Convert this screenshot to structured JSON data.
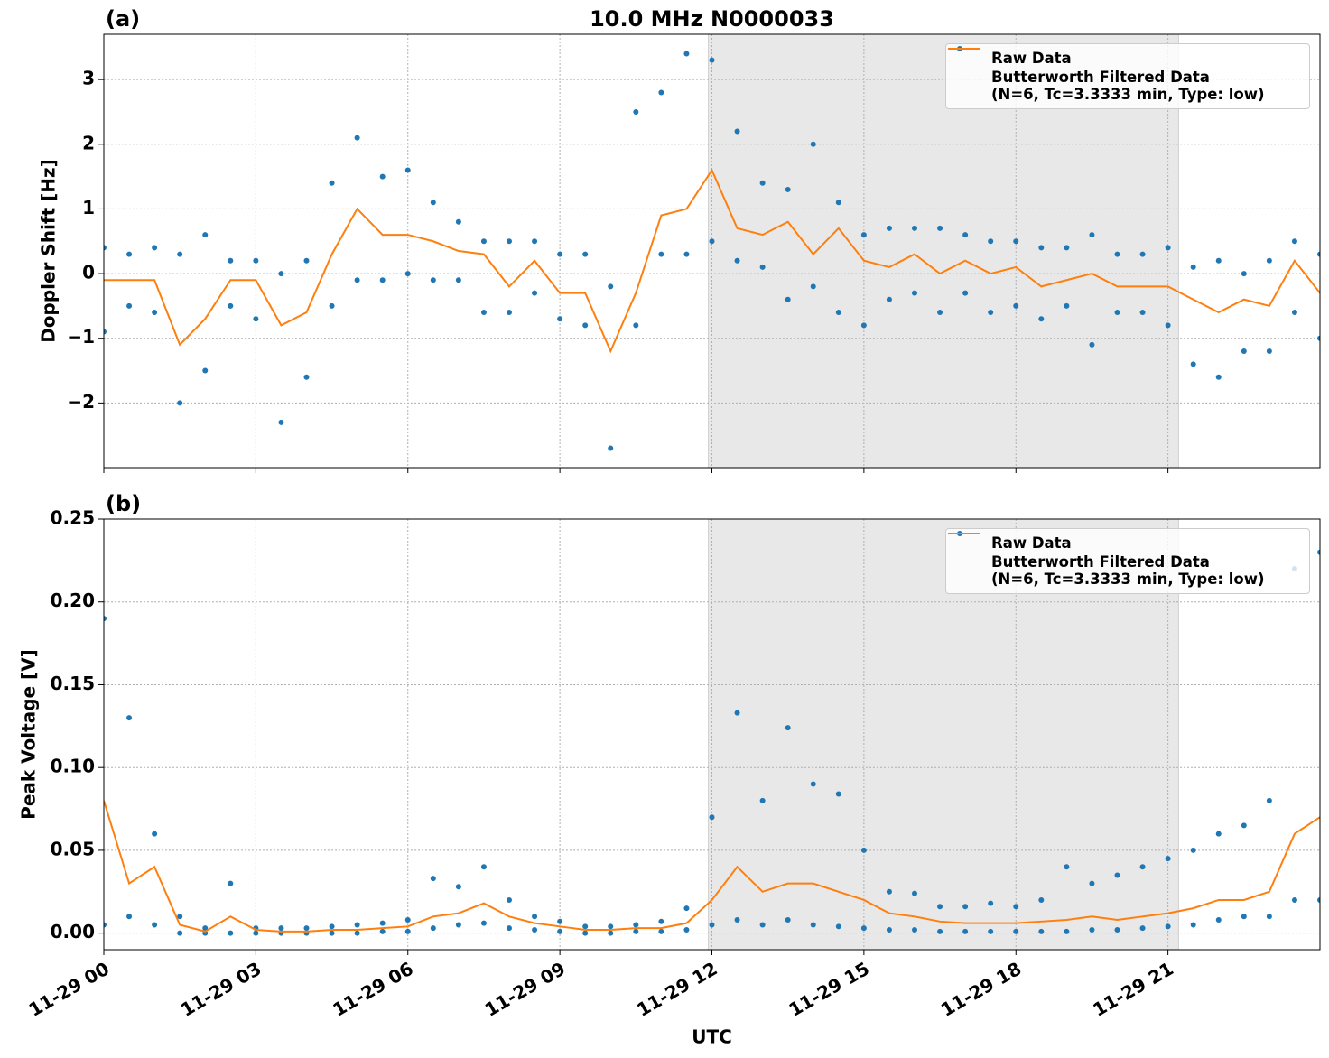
{
  "chart_data": [
    {
      "type": "scatter_line",
      "panel_label": "(a)",
      "title": "10.0 MHz N0000033",
      "ylabel": "Doppler Shift [Hz]",
      "xlim": [
        0,
        24
      ],
      "xticks": [
        0,
        3,
        6,
        9,
        12,
        15,
        18,
        21
      ],
      "ylim": [
        -3.0,
        3.7
      ],
      "yticks": [
        {
          "value": -2,
          "label": "−2"
        },
        {
          "value": -1,
          "label": "−1"
        },
        0,
        1,
        2,
        3
      ],
      "grid": true,
      "legend": "upper right",
      "shaded_span": [
        11.93,
        21.21
      ],
      "shade_color": "#e8e8e8",
      "series": [
        {
          "name": "Raw Data",
          "color": "#1f77b4",
          "mode": "markers",
          "x": [
            0,
            0,
            0.5,
            0.5,
            1,
            1,
            1.5,
            1.5,
            2,
            2,
            2.5,
            2.5,
            3,
            3,
            3.5,
            3.5,
            4,
            4,
            4.5,
            4.5,
            5,
            5,
            5.5,
            5.5,
            6,
            6,
            6.5,
            6.5,
            7,
            7,
            7.5,
            7.5,
            8,
            8,
            8.5,
            8.5,
            9,
            9,
            9.5,
            9.5,
            10,
            10,
            10.5,
            10.5,
            11,
            11,
            11.5,
            11.5,
            12,
            12,
            12.5,
            12.5,
            13,
            13,
            13.5,
            13.5,
            14,
            14,
            14.5,
            14.5,
            15,
            15,
            15.5,
            15.5,
            16,
            16,
            16.5,
            16.5,
            17,
            17,
            17.5,
            17.5,
            18,
            18,
            18.5,
            18.5,
            19,
            19,
            19.5,
            19.5,
            20,
            20,
            20.5,
            20.5,
            21,
            21,
            21.5,
            21.5,
            22,
            22,
            22.5,
            22.5,
            23,
            23,
            23.5,
            23.5,
            24,
            24
          ],
          "values": [
            0.4,
            -0.9,
            0.3,
            -0.5,
            0.4,
            -0.6,
            0.3,
            -2.0,
            0.6,
            -1.5,
            0.2,
            -0.5,
            0.2,
            -0.7,
            0.0,
            -2.3,
            0.2,
            -1.6,
            1.4,
            -0.5,
            2.1,
            -0.1,
            1.5,
            -0.1,
            1.6,
            0.0,
            1.1,
            -0.1,
            0.8,
            -0.1,
            0.5,
            -0.6,
            0.5,
            -0.6,
            0.5,
            -0.3,
            0.3,
            -0.7,
            0.3,
            -0.8,
            -0.2,
            -2.7,
            2.5,
            -0.8,
            2.8,
            0.3,
            3.4,
            0.3,
            3.3,
            0.5,
            2.2,
            0.2,
            1.4,
            0.1,
            1.3,
            -0.4,
            2.0,
            -0.2,
            1.1,
            -0.6,
            0.6,
            -0.8,
            0.7,
            -0.4,
            0.7,
            -0.3,
            0.7,
            -0.6,
            0.6,
            -0.3,
            0.5,
            -0.6,
            0.5,
            -0.5,
            0.4,
            -0.7,
            0.4,
            -0.5,
            0.6,
            -1.1,
            0.3,
            -0.6,
            0.3,
            -0.6,
            0.4,
            -0.8,
            0.1,
            -1.4,
            0.2,
            -1.6,
            0.0,
            -1.2,
            0.2,
            -1.2,
            0.5,
            -0.6,
            0.3,
            -1.0
          ]
        },
        {
          "name": "Butterworth Filtered Data\n(N=6, Tc=3.3333 min, Type: low)",
          "color": "#ff7f0e",
          "mode": "line",
          "x": [
            0,
            0.5,
            1,
            1.5,
            2,
            2.5,
            3,
            3.5,
            4,
            4.5,
            5,
            5.5,
            6,
            6.5,
            7,
            7.5,
            8,
            8.5,
            9,
            9.5,
            10,
            10.5,
            11,
            11.5,
            12,
            12.5,
            13,
            13.5,
            14,
            14.5,
            15,
            15.5,
            16,
            16.5,
            17,
            17.5,
            18,
            18.5,
            19,
            19.5,
            20,
            20.5,
            21,
            21.5,
            22,
            22.5,
            23,
            23.5,
            24
          ],
          "values": [
            -0.1,
            -0.1,
            -0.1,
            -1.1,
            -0.7,
            -0.1,
            -0.1,
            -0.8,
            -0.6,
            0.3,
            1.0,
            0.6,
            0.6,
            0.5,
            0.35,
            0.3,
            -0.2,
            0.2,
            -0.3,
            -0.3,
            -1.2,
            -0.3,
            0.9,
            1.0,
            1.6,
            0.7,
            0.6,
            0.8,
            0.3,
            0.7,
            0.2,
            0.1,
            0.3,
            0.0,
            0.2,
            0.0,
            0.1,
            -0.2,
            -0.1,
            0.0,
            -0.2,
            -0.2,
            -0.2,
            -0.4,
            -0.6,
            -0.4,
            -0.5,
            0.2,
            -0.3
          ]
        }
      ]
    },
    {
      "type": "scatter_line",
      "panel_label": "(b)",
      "xlabel": "UTC",
      "ylabel": "Peak Voltage [V]",
      "xlim": [
        0,
        24
      ],
      "xticks": [
        {
          "value": 0,
          "label": "11-29 00"
        },
        {
          "value": 3,
          "label": "11-29 03"
        },
        {
          "value": 6,
          "label": "11-29 06"
        },
        {
          "value": 9,
          "label": "11-29 09"
        },
        {
          "value": 12,
          "label": "11-29 12"
        },
        {
          "value": 15,
          "label": "11-29 15"
        },
        {
          "value": 18,
          "label": "11-29 18"
        },
        {
          "value": 21,
          "label": "11-29 21"
        }
      ],
      "ylim": [
        -0.01,
        0.25
      ],
      "yticks": [
        {
          "value": 0,
          "label": "0.00"
        },
        {
          "value": 0.05,
          "label": "0.05"
        },
        {
          "value": 0.1,
          "label": "0.10"
        },
        {
          "value": 0.15,
          "label": "0.15"
        },
        {
          "value": 0.2,
          "label": "0.20"
        },
        {
          "value": 0.25,
          "label": "0.25"
        }
      ],
      "grid": true,
      "legend": "upper right",
      "shaded_span": [
        11.93,
        21.21
      ],
      "shade_color": "#e8e8e8",
      "series": [
        {
          "name": "Raw Data",
          "color": "#1f77b4",
          "mode": "markers",
          "x": [
            0,
            0,
            0.5,
            0.5,
            1,
            1,
            1.5,
            1.5,
            2,
            2,
            2.5,
            2.5,
            3,
            3,
            3.5,
            3.5,
            4,
            4,
            4.5,
            4.5,
            5,
            5,
            5.5,
            5.5,
            6,
            6,
            6.5,
            6.5,
            7,
            7,
            7.5,
            7.5,
            8,
            8,
            8.5,
            8.5,
            9,
            9,
            9.5,
            9.5,
            10,
            10,
            10.5,
            10.5,
            11,
            11,
            11.5,
            11.5,
            12,
            12,
            12.5,
            12.5,
            13,
            13,
            13.5,
            13.5,
            14,
            14,
            14.5,
            14.5,
            15,
            15,
            15.5,
            15.5,
            16,
            16,
            16.5,
            16.5,
            17,
            17,
            17.5,
            17.5,
            18,
            18,
            18.5,
            18.5,
            19,
            19,
            19.5,
            19.5,
            20,
            20,
            20.5,
            20.5,
            21,
            21,
            21.5,
            21.5,
            22,
            22,
            22.5,
            22.5,
            23,
            23,
            23.5,
            23.5,
            24,
            24
          ],
          "values": [
            0.19,
            0.005,
            0.13,
            0.01,
            0.06,
            0.005,
            0.01,
            0.0,
            0.003,
            0.0,
            0.03,
            0.0,
            0.003,
            0.0,
            0.003,
            0.0,
            0.003,
            0.0,
            0.004,
            0.0,
            0.005,
            0.0,
            0.006,
            0.001,
            0.008,
            0.001,
            0.033,
            0.003,
            0.028,
            0.005,
            0.04,
            0.006,
            0.02,
            0.003,
            0.01,
            0.002,
            0.007,
            0.001,
            0.004,
            0.0,
            0.004,
            0.0,
            0.005,
            0.001,
            0.007,
            0.001,
            0.015,
            0.002,
            0.07,
            0.005,
            0.133,
            0.008,
            0.08,
            0.005,
            0.124,
            0.008,
            0.09,
            0.005,
            0.084,
            0.004,
            0.05,
            0.003,
            0.025,
            0.002,
            0.024,
            0.002,
            0.016,
            0.001,
            0.016,
            0.001,
            0.018,
            0.001,
            0.016,
            0.001,
            0.02,
            0.001,
            0.04,
            0.001,
            0.03,
            0.002,
            0.035,
            0.002,
            0.04,
            0.003,
            0.045,
            0.004,
            0.05,
            0.005,
            0.06,
            0.008,
            0.065,
            0.01,
            0.08,
            0.01,
            0.22,
            0.02,
            0.23,
            0.02
          ]
        },
        {
          "name": "Butterworth Filtered Data\n(N=6, Tc=3.3333 min, Type: low)",
          "color": "#ff7f0e",
          "mode": "line",
          "x": [
            0,
            0.5,
            1,
            1.5,
            2,
            2.5,
            3,
            3.5,
            4,
            4.5,
            5,
            5.5,
            6,
            6.5,
            7,
            7.5,
            8,
            8.5,
            9,
            9.5,
            10,
            10.5,
            11,
            11.5,
            12,
            12.5,
            13,
            13.5,
            14,
            14.5,
            15,
            15.5,
            16,
            16.5,
            17,
            17.5,
            18,
            18.5,
            19,
            19.5,
            20,
            20.5,
            21,
            21.5,
            22,
            22.5,
            23,
            23.5,
            24
          ],
          "values": [
            0.08,
            0.03,
            0.04,
            0.005,
            0.001,
            0.01,
            0.002,
            0.001,
            0.001,
            0.002,
            0.002,
            0.003,
            0.004,
            0.01,
            0.012,
            0.018,
            0.01,
            0.006,
            0.004,
            0.002,
            0.002,
            0.003,
            0.003,
            0.006,
            0.02,
            0.04,
            0.025,
            0.03,
            0.03,
            0.025,
            0.02,
            0.012,
            0.01,
            0.007,
            0.006,
            0.006,
            0.006,
            0.007,
            0.008,
            0.01,
            0.008,
            0.01,
            0.012,
            0.015,
            0.02,
            0.02,
            0.025,
            0.06,
            0.07
          ]
        }
      ]
    }
  ]
}
